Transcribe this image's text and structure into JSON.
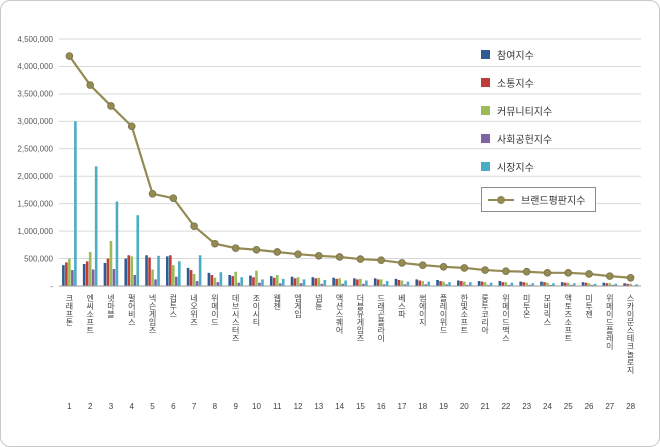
{
  "chart_data": {
    "type": "bar+line",
    "title": "",
    "legend_position": "upper-right",
    "grid": true,
    "ylim": [
      0,
      4500000
    ],
    "ytick": 500000,
    "y_tick_labels": [
      "-",
      "500,000",
      "1,000,000",
      "1,500,000",
      "2,000,000",
      "2,500,000",
      "3,000,000",
      "3,500,000",
      "4,000,000",
      "4,500,000"
    ],
    "categories": [
      "크래프톤",
      "엔씨소프트",
      "넷마블",
      "펄어비스",
      "넥슨게임즈",
      "컴투스",
      "네오위즈",
      "위메이드",
      "데브시스터즈",
      "조이시티",
      "웹젠",
      "엠게임",
      "넵튠",
      "액션스퀘어",
      "더블유게임즈",
      "드래곤플라이",
      "베스파",
      "썸에이지",
      "플레이위드",
      "한빛소프트",
      "룽투코리아",
      "위메이드맥스",
      "미투온",
      "모비릭스",
      "액토즈소프트",
      "미투젠",
      "위메이드플레이",
      "스카이문스테크놀로지"
    ],
    "category_numbers": [
      "1",
      "2",
      "3",
      "4",
      "5",
      "6",
      "7",
      "8",
      "9",
      "10",
      "11",
      "12",
      "13",
      "14",
      "15",
      "16",
      "17",
      "18",
      "19",
      "20",
      "21",
      "22",
      "23",
      "24",
      "25",
      "26",
      "27",
      "28"
    ],
    "bar_series": [
      {
        "key": "participation",
        "name": "참여지수",
        "color": "#2F5B93",
        "values": [
          380000,
          400000,
          420000,
          500000,
          560000,
          540000,
          330000,
          240000,
          200000,
          190000,
          180000,
          170000,
          160000,
          150000,
          140000,
          140000,
          130000,
          120000,
          110000,
          100000,
          90000,
          90000,
          80000,
          80000,
          70000,
          70000,
          60000,
          50000
        ]
      },
      {
        "key": "communication",
        "name": "소통지수",
        "color": "#BE3D37",
        "values": [
          430000,
          450000,
          500000,
          560000,
          520000,
          560000,
          290000,
          200000,
          180000,
          160000,
          150000,
          140000,
          140000,
          130000,
          120000,
          120000,
          110000,
          100000,
          90000,
          90000,
          80000,
          70000,
          70000,
          70000,
          60000,
          60000,
          50000,
          40000
        ]
      },
      {
        "key": "community",
        "name": "커뮤니티지수",
        "color": "#9BBB59",
        "values": [
          500000,
          620000,
          820000,
          540000,
          300000,
          380000,
          220000,
          150000,
          260000,
          280000,
          200000,
          160000,
          150000,
          140000,
          130000,
          120000,
          100000,
          90000,
          80000,
          80000,
          70000,
          70000,
          60000,
          60000,
          60000,
          50000,
          50000,
          40000
        ]
      },
      {
        "key": "social-contribution",
        "name": "사회공헌지수",
        "color": "#7F63A2",
        "values": [
          290000,
          300000,
          310000,
          200000,
          120000,
          170000,
          90000,
          70000,
          60000,
          60000,
          50000,
          50000,
          40000,
          40000,
          40000,
          30000,
          30000,
          30000,
          30000,
          20000,
          20000,
          20000,
          20000,
          20000,
          20000,
          20000,
          20000,
          10000
        ]
      },
      {
        "key": "market",
        "name": "시장지수",
        "color": "#4BACC6",
        "values": [
          3000000,
          2180000,
          1540000,
          1290000,
          550000,
          450000,
          560000,
          250000,
          160000,
          120000,
          130000,
          120000,
          110000,
          100000,
          100000,
          90000,
          80000,
          80000,
          70000,
          70000,
          60000,
          60000,
          50000,
          50000,
          50000,
          40000,
          40000,
          30000
        ]
      }
    ],
    "line_series": {
      "key": "brand-reputation",
      "name": "브랜드평판지수",
      "color": "#948A54",
      "marker_stroke": "#7a7147",
      "values": [
        4190000,
        3660000,
        3280000,
        2910000,
        1680000,
        1600000,
        1090000,
        770000,
        690000,
        660000,
        620000,
        580000,
        550000,
        530000,
        490000,
        470000,
        420000,
        380000,
        350000,
        330000,
        290000,
        270000,
        260000,
        240000,
        240000,
        220000,
        180000,
        150000
      ]
    },
    "colors": {
      "gridline": "#d9d9d9",
      "axis": "#9a9a9a",
      "tick_text": "#595959",
      "category_text": "#404040"
    }
  }
}
